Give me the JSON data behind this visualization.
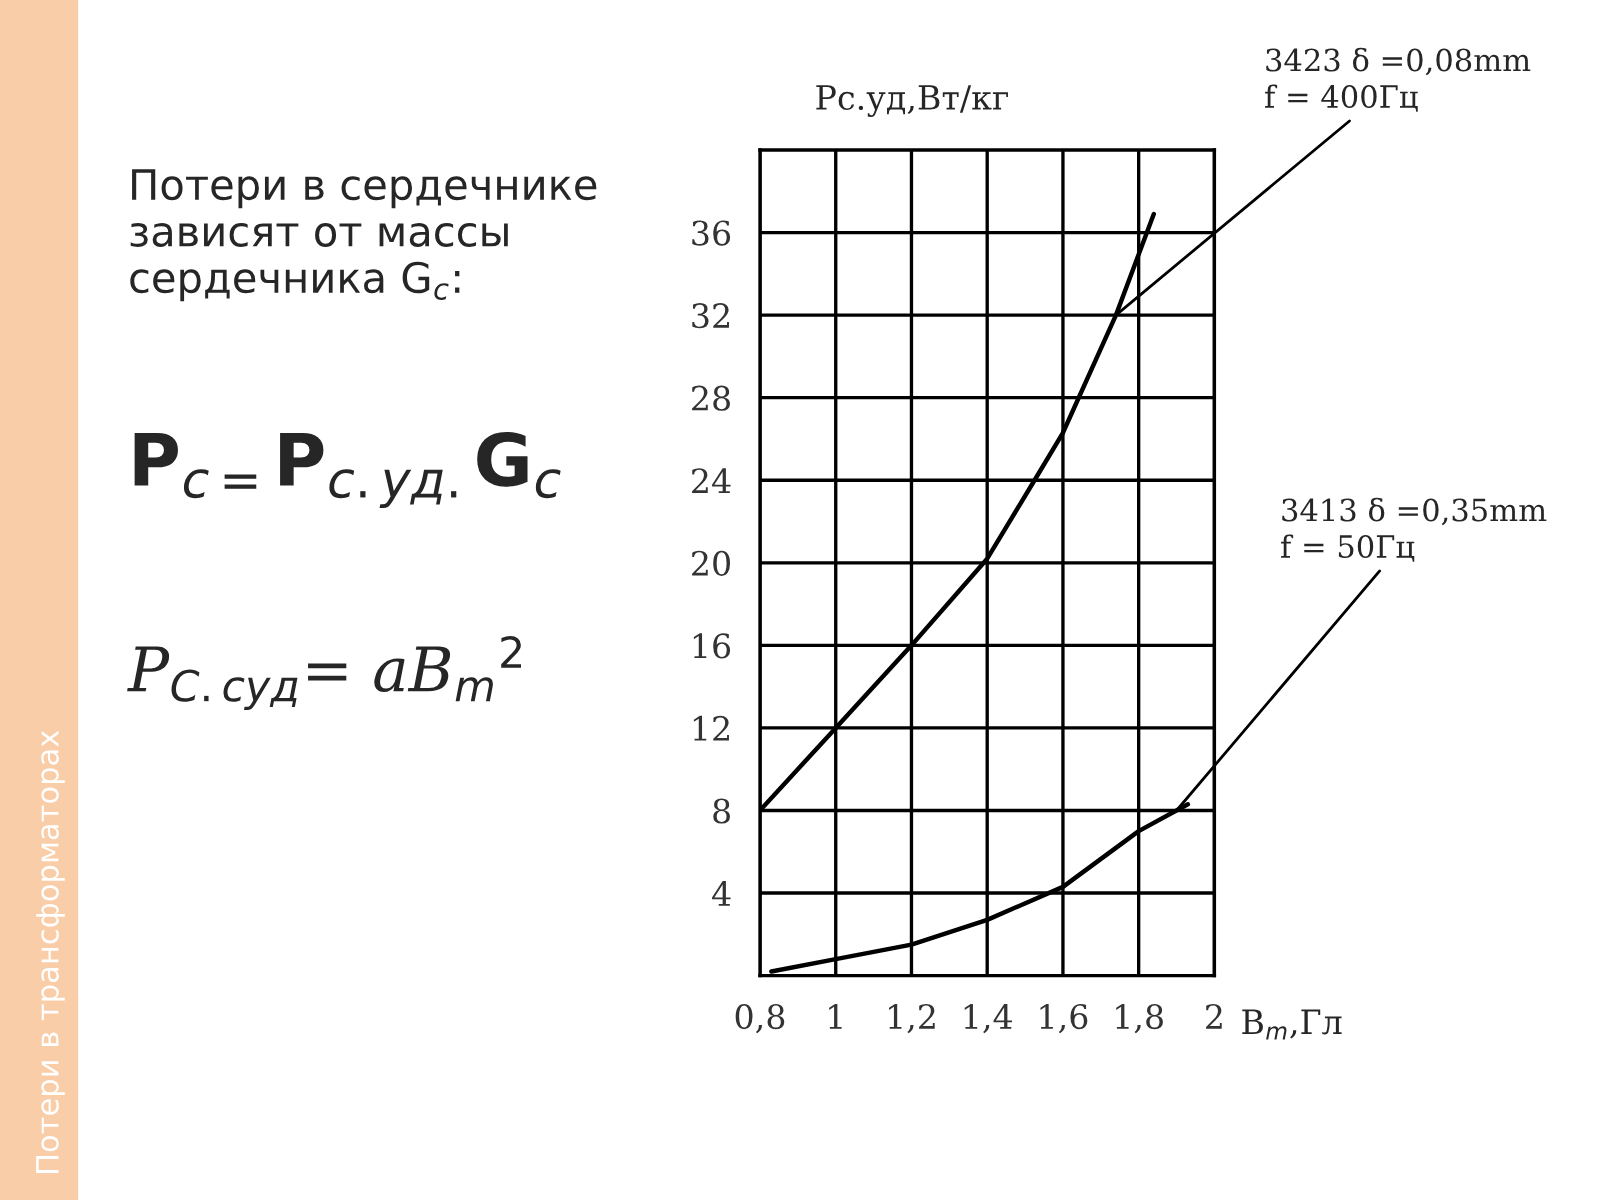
{
  "chart_data": {
    "type": "line",
    "xlabel": "B$_{m}$,Гл",
    "ylabel": "Pс.уд,Вт/кг",
    "x": [
      0.8,
      1.0,
      1.2,
      1.4,
      1.525,
      1.6,
      1.74,
      1.84
    ],
    "series": [
      {
        "color": "#000000",
        "values": [
          8,
          12,
          16,
          20.2,
          24,
          26.3,
          32,
          36.9
        ]
      },
      {
        "color": "#000000",
        "x": [
          0.83,
          1.0,
          1.2,
          1.4,
          1.6,
          1.8,
          1.93
        ],
        "values": [
          0.2,
          0.8,
          1.5,
          2.7,
          4.3,
          7.0,
          8.3
        ]
      }
    ],
    "xlim": [
      0.8,
      2.0
    ],
    "xticks": [
      {
        "value": 0.8,
        "label": "0,8"
      },
      1,
      {
        "value": 1.2,
        "label": "1,2"
      },
      {
        "value": 1.4,
        "label": "1,4"
      },
      {
        "value": 1.6,
        "label": "1,6"
      },
      {
        "value": 1.8,
        "label": "1,8"
      },
      2
    ],
    "ylim": [
      0,
      40
    ],
    "yticks": [
      4,
      8,
      12,
      16,
      20,
      24,
      28,
      32,
      36
    ],
    "grid": true,
    "legend": false,
    "marker": "none",
    "line_style": "solid",
    "annotations": [
      {
        "text": "3423 δ =0,08mm\nf = 400Гц",
        "x": 1.74,
        "y": 32
      },
      {
        "text": "3413 δ =0,35mm\nf = 50Гц",
        "x": 1.9,
        "y": 8
      },
      "Потери в сердечнике\nзависят от массы\nсердечника G$_{c}$:",
      "P$_{с=}$P$_{с.уд.}$G$_{с}$",
      "P$_{C.суд}$= aB$_{m}$$^{2}$",
      "Потери в трансформаторах"
    ]
  }
}
